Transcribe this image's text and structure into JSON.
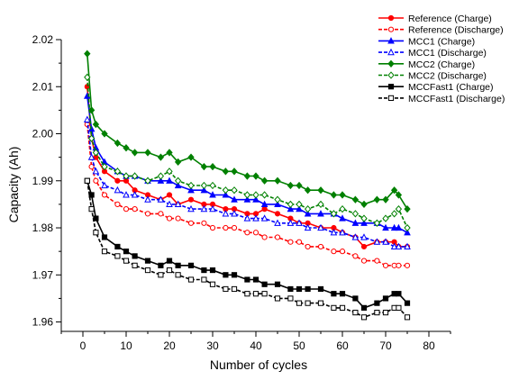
{
  "chart_data": {
    "type": "line",
    "xlabel": "Number of cycles",
    "ylabel": "Capacity (Ah)",
    "xlim": [
      -5,
      85
    ],
    "ylim": [
      1.958,
      2.02
    ],
    "xticks": [
      0,
      10,
      20,
      30,
      40,
      50,
      60,
      70,
      80
    ],
    "yticks": [
      1.96,
      1.97,
      1.98,
      1.99,
      2.0,
      2.01,
      2.02
    ],
    "grid": false,
    "legend_position": "top-right",
    "series": [
      {
        "name": "Reference (Charge)",
        "color": "#ff0000",
        "line_style": "solid",
        "marker": "circle-filled",
        "x": [
          1,
          2,
          3,
          5,
          8,
          10,
          12,
          15,
          18,
          20,
          22,
          25,
          28,
          30,
          33,
          35,
          38,
          40,
          42,
          45,
          48,
          50,
          52,
          55,
          58,
          60,
          63,
          65,
          68,
          70,
          72,
          73,
          75
        ],
        "y": [
          2.01,
          1.999,
          1.995,
          1.992,
          1.99,
          1.99,
          1.988,
          1.987,
          1.986,
          1.987,
          1.985,
          1.986,
          1.985,
          1.985,
          1.984,
          1.984,
          1.983,
          1.983,
          1.984,
          1.983,
          1.982,
          1.981,
          1.981,
          1.98,
          1.98,
          1.979,
          1.978,
          1.976,
          1.977,
          1.977,
          1.977,
          1.976,
          1.976
        ]
      },
      {
        "name": "Reference (Discharge)",
        "color": "#ff0000",
        "line_style": "dashed",
        "marker": "circle-open",
        "x": [
          1,
          2,
          3,
          5,
          8,
          10,
          12,
          15,
          18,
          20,
          22,
          25,
          28,
          30,
          33,
          35,
          38,
          40,
          42,
          45,
          48,
          50,
          52,
          55,
          58,
          60,
          63,
          65,
          68,
          70,
          72,
          73,
          75
        ],
        "y": [
          2.002,
          1.993,
          1.99,
          1.987,
          1.985,
          1.984,
          1.984,
          1.983,
          1.983,
          1.982,
          1.982,
          1.981,
          1.981,
          1.98,
          1.98,
          1.98,
          1.979,
          1.979,
          1.978,
          1.978,
          1.977,
          1.977,
          1.976,
          1.976,
          1.975,
          1.975,
          1.974,
          1.973,
          1.973,
          1.972,
          1.972,
          1.972,
          1.972
        ]
      },
      {
        "name": "MCC1 (Charge)",
        "color": "#0000ff",
        "line_style": "solid",
        "marker": "triangle-filled",
        "x": [
          1,
          2,
          3,
          5,
          8,
          10,
          12,
          15,
          18,
          20,
          22,
          25,
          28,
          30,
          33,
          35,
          38,
          40,
          42,
          45,
          48,
          50,
          52,
          55,
          58,
          60,
          63,
          65,
          68,
          70,
          72,
          73,
          75
        ],
        "y": [
          2.008,
          2.001,
          1.997,
          1.994,
          1.992,
          1.991,
          1.991,
          1.99,
          1.99,
          1.99,
          1.989,
          1.988,
          1.988,
          1.987,
          1.987,
          1.986,
          1.986,
          1.986,
          1.985,
          1.985,
          1.984,
          1.984,
          1.983,
          1.983,
          1.983,
          1.982,
          1.981,
          1.981,
          1.981,
          1.98,
          1.98,
          1.98,
          1.979
        ]
      },
      {
        "name": "MCC1 (Discharge)",
        "color": "#0000ff",
        "line_style": "dashed",
        "marker": "triangle-open",
        "x": [
          1,
          2,
          3,
          5,
          8,
          10,
          12,
          15,
          18,
          20,
          22,
          25,
          28,
          30,
          33,
          35,
          38,
          40,
          42,
          45,
          48,
          50,
          52,
          55,
          58,
          60,
          63,
          65,
          68,
          70,
          72,
          73,
          75
        ],
        "y": [
          2.003,
          1.995,
          1.992,
          1.989,
          1.988,
          1.987,
          1.987,
          1.986,
          1.986,
          1.985,
          1.985,
          1.984,
          1.984,
          1.984,
          1.983,
          1.983,
          1.982,
          1.982,
          1.982,
          1.981,
          1.981,
          1.981,
          1.98,
          1.98,
          1.979,
          1.979,
          1.978,
          1.978,
          1.977,
          1.977,
          1.976,
          1.976,
          1.976
        ]
      },
      {
        "name": "MCC2 (Charge)",
        "color": "#008000",
        "line_style": "solid",
        "marker": "diamond-filled",
        "x": [
          1,
          2,
          3,
          5,
          8,
          10,
          12,
          15,
          18,
          20,
          22,
          25,
          28,
          30,
          33,
          35,
          38,
          40,
          42,
          45,
          48,
          50,
          52,
          55,
          58,
          60,
          63,
          65,
          68,
          70,
          72,
          73,
          75
        ],
        "y": [
          2.017,
          2.005,
          2.002,
          2.0,
          1.998,
          1.997,
          1.996,
          1.996,
          1.995,
          1.996,
          1.994,
          1.995,
          1.993,
          1.993,
          1.992,
          1.992,
          1.991,
          1.991,
          1.99,
          1.99,
          1.989,
          1.989,
          1.988,
          1.988,
          1.987,
          1.987,
          1.986,
          1.985,
          1.986,
          1.986,
          1.988,
          1.987,
          1.984
        ]
      },
      {
        "name": "MCC2 (Discharge)",
        "color": "#008000",
        "line_style": "dashed",
        "marker": "diamond-open",
        "x": [
          1,
          2,
          3,
          5,
          8,
          10,
          12,
          15,
          18,
          20,
          22,
          25,
          28,
          30,
          33,
          35,
          38,
          40,
          42,
          45,
          48,
          50,
          52,
          55,
          58,
          60,
          63,
          65,
          68,
          70,
          72,
          73,
          75
        ],
        "y": [
          2.012,
          1.999,
          1.996,
          1.993,
          1.992,
          1.991,
          1.991,
          1.99,
          1.991,
          1.992,
          1.99,
          1.989,
          1.989,
          1.989,
          1.988,
          1.988,
          1.987,
          1.987,
          1.987,
          1.986,
          1.985,
          1.985,
          1.984,
          1.985,
          1.983,
          1.984,
          1.983,
          1.982,
          1.981,
          1.982,
          1.983,
          1.984,
          1.98
        ]
      },
      {
        "name": "MCCFast1 (Charge)",
        "color": "#000000",
        "line_style": "solid",
        "marker": "square-filled",
        "x": [
          1,
          2,
          3,
          5,
          8,
          10,
          12,
          15,
          18,
          20,
          22,
          25,
          28,
          30,
          33,
          35,
          38,
          40,
          42,
          45,
          48,
          50,
          52,
          55,
          58,
          60,
          63,
          65,
          68,
          70,
          72,
          73,
          75
        ],
        "y": [
          1.99,
          1.987,
          1.982,
          1.978,
          1.976,
          1.975,
          1.974,
          1.973,
          1.972,
          1.973,
          1.972,
          1.972,
          1.971,
          1.971,
          1.97,
          1.97,
          1.969,
          1.969,
          1.968,
          1.968,
          1.967,
          1.967,
          1.967,
          1.967,
          1.966,
          1.966,
          1.965,
          1.963,
          1.964,
          1.965,
          1.966,
          1.966,
          1.964
        ]
      },
      {
        "name": "MCCFast1 (Discharge)",
        "color": "#000000",
        "line_style": "dashed",
        "marker": "square-open",
        "x": [
          1,
          2,
          3,
          5,
          8,
          10,
          12,
          15,
          18,
          20,
          22,
          25,
          28,
          30,
          33,
          35,
          38,
          40,
          42,
          45,
          48,
          50,
          52,
          55,
          58,
          60,
          63,
          65,
          68,
          70,
          72,
          73,
          75
        ],
        "y": [
          1.99,
          1.984,
          1.979,
          1.975,
          1.974,
          1.973,
          1.972,
          1.971,
          1.97,
          1.971,
          1.97,
          1.969,
          1.969,
          1.968,
          1.967,
          1.967,
          1.966,
          1.966,
          1.966,
          1.965,
          1.965,
          1.964,
          1.964,
          1.964,
          1.963,
          1.963,
          1.962,
          1.961,
          1.962,
          1.962,
          1.963,
          1.963,
          1.961
        ]
      }
    ]
  }
}
